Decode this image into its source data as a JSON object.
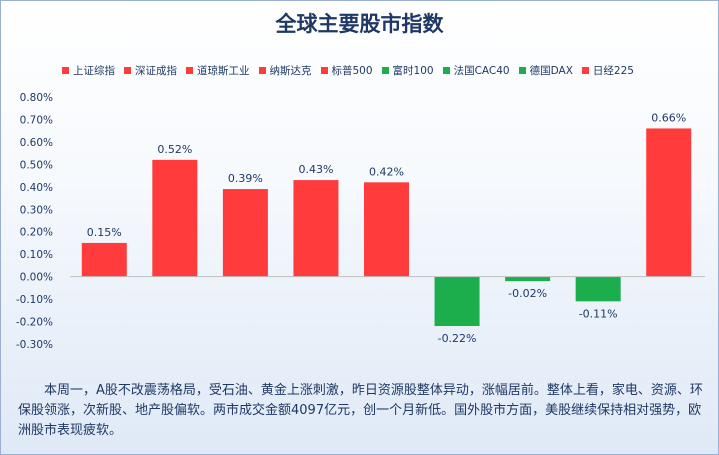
{
  "title": "全球主要股市指数",
  "colors": {
    "up": "#ff3b3b",
    "down": "#1cad4c",
    "title": "#1f3864"
  },
  "chart_data": {
    "type": "bar",
    "title": "全球主要股市指数",
    "categories": [
      "上证综指",
      "深证成指",
      "道琼斯工业",
      "纳斯达克",
      "标普500",
      "富时100",
      "法国CAC40",
      "德国DAX",
      "日经225"
    ],
    "values": [
      0.15,
      0.52,
      0.39,
      0.43,
      0.42,
      -0.22,
      -0.02,
      -0.11,
      0.66
    ],
    "value_labels": [
      "0.15%",
      "0.52%",
      "0.39%",
      "0.43%",
      "0.42%",
      "-0.22%",
      "-0.02%",
      "-0.11%",
      "0.66%"
    ],
    "unit": "%",
    "ylim": [
      -0.3,
      0.8
    ],
    "yticks": [
      0.8,
      0.7,
      0.6,
      0.5,
      0.4,
      0.3,
      0.2,
      0.1,
      0.0,
      -0.1,
      -0.2,
      -0.3
    ],
    "ytick_labels": [
      "0.80%",
      "0.70%",
      "0.60%",
      "0.50%",
      "0.40%",
      "0.30%",
      "0.20%",
      "0.10%",
      "0.00%",
      "-0.10%",
      "-0.20%",
      "-0.30%"
    ],
    "grid": false,
    "legend_position": "top"
  },
  "note": "本周一，A股不改震荡格局，受石油、黄金上涨刺激，昨日资源股整体异动，涨幅居前。整体上看，家电、资源、环保股领涨，次新股、地产股偏软。两市成交金额4097亿元，创一个月新低。国外股市方面，美股继续保持相对强势，欧洲股市表现疲软。"
}
